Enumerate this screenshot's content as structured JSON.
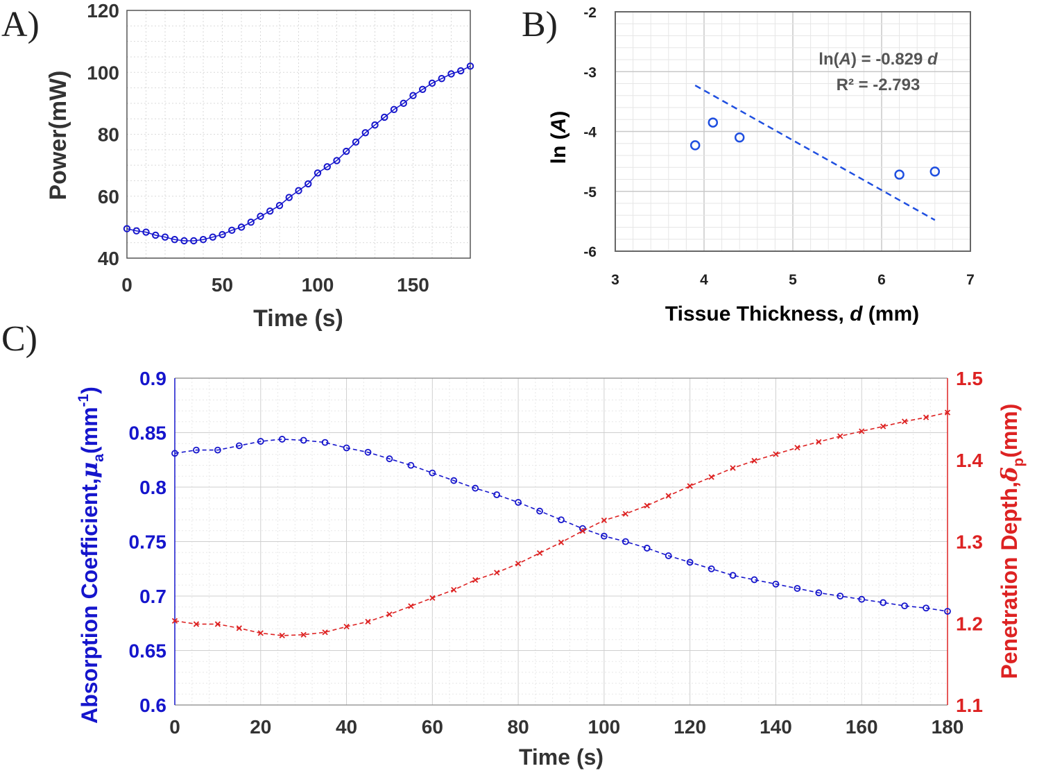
{
  "panel_labels": [
    "A)",
    "B)",
    "C)"
  ],
  "colors": {
    "blue": "#1515cc",
    "red": "#dd2222",
    "blue_dash": "#1f4fe0",
    "grid": "#d9d9d9",
    "axis": "#555555"
  },
  "chart_data": [
    {
      "id": "A",
      "type": "line",
      "title": "",
      "xlabel": "Time (s)",
      "ylabel": "Power(mW)",
      "xlim": [
        0,
        180
      ],
      "ylim": [
        40,
        120
      ],
      "xticks": [
        0,
        50,
        100,
        150
      ],
      "yticks": [
        40,
        60,
        80,
        100,
        120
      ],
      "grid": true,
      "series": [
        {
          "name": "Power",
          "marker": "circle",
          "x": [
            0,
            5,
            10,
            15,
            20,
            25,
            30,
            35,
            40,
            45,
            50,
            55,
            60,
            65,
            70,
            75,
            80,
            85,
            90,
            95,
            100,
            105,
            110,
            115,
            120,
            125,
            130,
            135,
            140,
            145,
            150,
            155,
            160,
            165,
            170,
            175,
            180
          ],
          "values": [
            49.5,
            48.8,
            48.4,
            47.4,
            46.8,
            46.0,
            45.6,
            45.6,
            46.0,
            46.8,
            47.6,
            49.0,
            50.0,
            51.6,
            53.5,
            55.2,
            57.0,
            59.6,
            61.8,
            64.0,
            67.5,
            69.5,
            71.5,
            74.5,
            77.5,
            80.5,
            83.0,
            85.5,
            88.0,
            90.0,
            92.5,
            94.5,
            96.5,
            98.0,
            99.5,
            100.5,
            102.0
          ]
        }
      ]
    },
    {
      "id": "B",
      "type": "scatter",
      "title": "",
      "xlabel_parts": [
        "Tissue Thickness, ",
        "d",
        " (mm)"
      ],
      "ylabel_parts": [
        "ln (",
        "A",
        ")"
      ],
      "xlim": [
        3,
        7
      ],
      "ylim": [
        -6,
        -2
      ],
      "xticks": [
        3,
        4,
        5,
        6,
        7
      ],
      "yticks": [
        -2,
        -3,
        -4,
        -5,
        -6
      ],
      "grid": true,
      "points": [
        {
          "x": 3.9,
          "y": -4.23
        },
        {
          "x": 4.1,
          "y": -3.85
        },
        {
          "x": 4.4,
          "y": -4.1
        },
        {
          "x": 6.2,
          "y": -4.72
        },
        {
          "x": 6.6,
          "y": -4.67
        }
      ],
      "fit_line": {
        "x": [
          3.9,
          6.6
        ],
        "y": [
          -3.23,
          -5.48
        ]
      },
      "annotation": {
        "equation_parts": [
          "ln(",
          "A",
          ") = -0.829 ",
          "d"
        ],
        "r2": "R² = -2.793"
      }
    },
    {
      "id": "C",
      "type": "line",
      "title": "",
      "xlabel": "Time (s)",
      "ylabel_left": {
        "main": "Absorption Coefficient,",
        "symbol": "μ",
        "sub": "a",
        "unit": "(mm",
        "sup": "-1",
        "close": ")"
      },
      "ylabel_right": {
        "main": "Penetration Depth,",
        "symbol": "δ",
        "sub": "p",
        "unit": "(mm)"
      },
      "xlim": [
        0,
        180
      ],
      "ylim_left": [
        0.6,
        0.9
      ],
      "ylim_right": [
        1.1,
        1.5
      ],
      "xticks": [
        0,
        20,
        40,
        60,
        80,
        100,
        120,
        140,
        160,
        180
      ],
      "yticks_left": [
        "0.6",
        "0.65",
        "0.7",
        "0.75",
        "0.8",
        "0.85",
        "0.9"
      ],
      "yticks_right": [
        "1.1",
        "1.2",
        "1.3",
        "1.4",
        "1.5"
      ],
      "grid": true,
      "series": [
        {
          "name": "Absorption Coefficient",
          "axis": "left",
          "marker": "circle",
          "x": [
            0,
            5,
            10,
            15,
            20,
            25,
            30,
            35,
            40,
            45,
            50,
            55,
            60,
            65,
            70,
            75,
            80,
            85,
            90,
            95,
            100,
            105,
            110,
            115,
            120,
            125,
            130,
            135,
            140,
            145,
            150,
            155,
            160,
            165,
            170,
            175,
            180
          ],
          "values": [
            0.831,
            0.834,
            0.834,
            0.838,
            0.842,
            0.844,
            0.843,
            0.841,
            0.836,
            0.832,
            0.826,
            0.82,
            0.813,
            0.806,
            0.799,
            0.793,
            0.786,
            0.778,
            0.77,
            0.762,
            0.755,
            0.75,
            0.744,
            0.737,
            0.731,
            0.725,
            0.719,
            0.715,
            0.711,
            0.707,
            0.703,
            0.7,
            0.697,
            0.694,
            0.691,
            0.689,
            0.686
          ]
        },
        {
          "name": "Penetration Depth",
          "axis": "right",
          "marker": "x",
          "x": [
            0,
            5,
            10,
            15,
            20,
            25,
            30,
            35,
            40,
            45,
            50,
            55,
            60,
            65,
            70,
            75,
            80,
            85,
            90,
            95,
            100,
            105,
            110,
            115,
            120,
            125,
            130,
            135,
            140,
            145,
            150,
            155,
            160,
            165,
            170,
            175,
            180
          ],
          "values": [
            1.203,
            1.199,
            1.199,
            1.194,
            1.188,
            1.185,
            1.186,
            1.189,
            1.196,
            1.202,
            1.211,
            1.221,
            1.231,
            1.241,
            1.253,
            1.262,
            1.273,
            1.286,
            1.299,
            1.313,
            1.326,
            1.334,
            1.344,
            1.356,
            1.368,
            1.379,
            1.39,
            1.399,
            1.407,
            1.415,
            1.422,
            1.429,
            1.435,
            1.441,
            1.447,
            1.452,
            1.458
          ]
        }
      ]
    }
  ]
}
